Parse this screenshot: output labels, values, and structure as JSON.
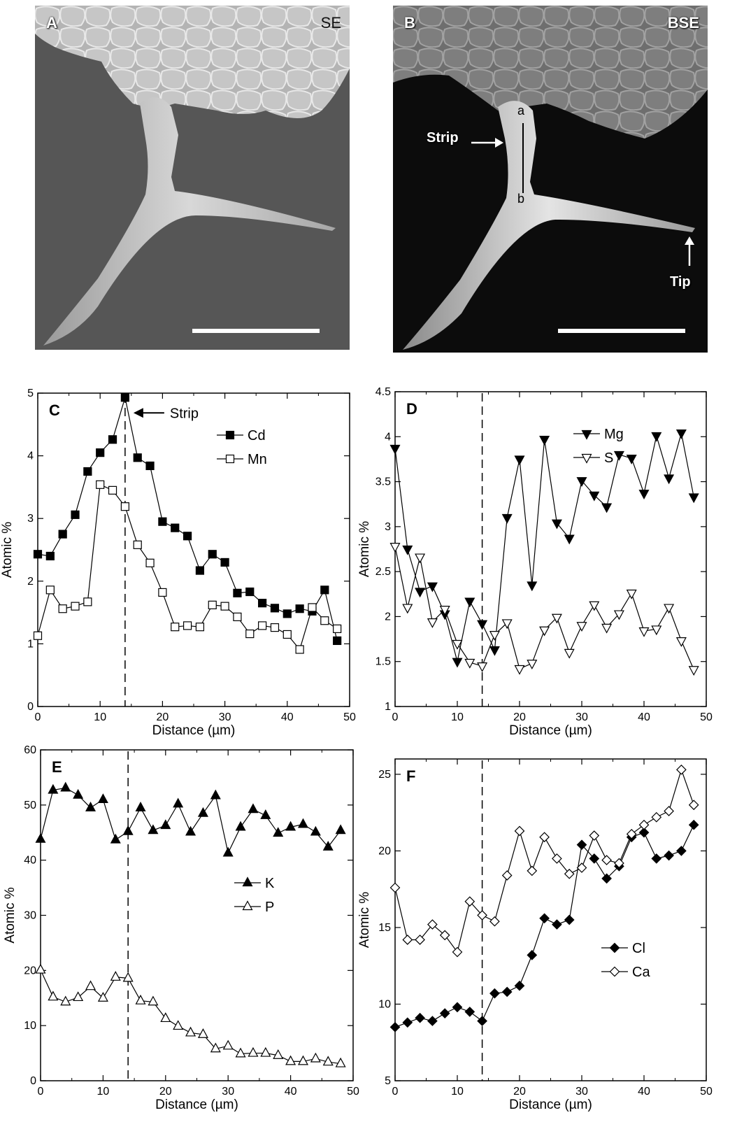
{
  "panelA": {
    "letter": "A",
    "mode": "SE"
  },
  "panelB": {
    "letter": "B",
    "mode": "BSE",
    "line_top": "a",
    "line_bottom": "b",
    "strip_label": "Strip",
    "tip_label": "Tip"
  },
  "charts": [
    {
      "panel_label": "C",
      "title": "",
      "xlabel": "Distance (µm)",
      "ylabel": "Atomic %",
      "xlim": [
        0,
        50
      ],
      "ylim": [
        0,
        5
      ],
      "xticks": [
        0,
        10,
        20,
        30,
        40,
        50
      ],
      "yticks": [
        0,
        1,
        2,
        3,
        4,
        5
      ],
      "ytick_labels": [
        "0",
        "1",
        "2",
        "3",
        "4",
        "5"
      ],
      "dashed_x": 14,
      "annotation": {
        "text": "Strip",
        "x": 14,
        "y": 4.93
      }
    },
    {
      "panel_label": "D",
      "title": "",
      "xlabel": "Distance (µm)",
      "ylabel": "Atomic %",
      "xlim": [
        0,
        50
      ],
      "ylim": [
        1,
        4.5
      ],
      "xticks": [
        0,
        10,
        20,
        30,
        40,
        50
      ],
      "yticks": [
        1,
        1.5,
        2,
        2.5,
        3,
        3.5,
        4,
        4.5
      ],
      "ytick_labels": [
        "1",
        "1.5",
        "2",
        "2.5",
        "3",
        "3.5",
        "4",
        "4.5"
      ],
      "dashed_x": 14
    },
    {
      "panel_label": "E",
      "title": "",
      "xlabel": "Distance (µm)",
      "ylabel": "Atomic %",
      "xlim": [
        0,
        50
      ],
      "ylim": [
        0,
        60
      ],
      "xticks": [
        0,
        10,
        20,
        30,
        40,
        50
      ],
      "yticks": [
        0,
        10,
        20,
        30,
        40,
        50,
        60
      ],
      "ytick_labels": [
        "0",
        "10",
        "20",
        "30",
        "40",
        "50",
        "60"
      ],
      "dashed_x": 14
    },
    {
      "panel_label": "F",
      "title": "",
      "xlabel": "Distance (µm)",
      "ylabel": "Atomic %",
      "xlim": [
        0,
        50
      ],
      "ylim": [
        5,
        26
      ],
      "xticks": [
        0,
        10,
        20,
        30,
        40,
        50
      ],
      "yticks": [
        5,
        10,
        15,
        20,
        25
      ],
      "ytick_labels": [
        "5",
        "10",
        "15",
        "20",
        "25"
      ],
      "dashed_x": 14
    }
  ],
  "chart_data": [
    {
      "type": "line",
      "panel": "C",
      "xlabel": "Distance (µm)",
      "ylabel": "Atomic %",
      "xlim": [
        0,
        50
      ],
      "ylim": [
        0,
        5
      ],
      "legend_position": "upper-right",
      "x": [
        0,
        2,
        4,
        6,
        8,
        10,
        12,
        14,
        16,
        18,
        20,
        22,
        24,
        26,
        28,
        30,
        32,
        34,
        36,
        38,
        40,
        42,
        44,
        46,
        48
      ],
      "series": [
        {
          "name": "Cd",
          "marker": "filled-square",
          "values": [
            2.43,
            2.4,
            2.75,
            3.06,
            3.75,
            4.05,
            4.26,
            4.93,
            3.97,
            3.84,
            2.95,
            2.85,
            2.72,
            2.17,
            2.43,
            2.3,
            1.81,
            1.83,
            1.65,
            1.57,
            1.48,
            1.56,
            1.52,
            1.86,
            1.05
          ]
        },
        {
          "name": "Mn",
          "marker": "open-square",
          "values": [
            1.13,
            1.86,
            1.56,
            1.6,
            1.67,
            3.54,
            3.45,
            3.19,
            2.58,
            2.29,
            1.82,
            1.27,
            1.29,
            1.27,
            1.62,
            1.6,
            1.43,
            1.16,
            1.29,
            1.26,
            1.15,
            0.91,
            1.58,
            1.37,
            1.24
          ]
        }
      ]
    },
    {
      "type": "line",
      "panel": "D",
      "xlabel": "Distance (µm)",
      "ylabel": "Atomic %",
      "xlim": [
        0,
        50
      ],
      "ylim": [
        1,
        4.5
      ],
      "legend_position": "upper-right",
      "x": [
        0,
        2,
        4,
        6,
        8,
        10,
        12,
        14,
        16,
        18,
        20,
        22,
        24,
        26,
        28,
        30,
        32,
        34,
        36,
        38,
        40,
        42,
        44,
        46,
        48
      ],
      "series": [
        {
          "name": "Mg",
          "marker": "filled-triangle-down",
          "values": [
            3.87,
            2.75,
            2.28,
            2.34,
            2.03,
            1.5,
            2.17,
            1.92,
            1.63,
            3.1,
            3.75,
            2.35,
            3.97,
            3.04,
            2.87,
            3.51,
            3.35,
            3.22,
            3.8,
            3.76,
            3.37,
            4.01,
            3.54,
            4.04,
            3.33
          ]
        },
        {
          "name": "S",
          "marker": "open-triangle-down",
          "values": [
            2.78,
            2.1,
            2.66,
            1.94,
            2.08,
            1.7,
            1.49,
            1.45,
            1.8,
            1.93,
            1.42,
            1.48,
            1.85,
            1.99,
            1.6,
            1.9,
            2.13,
            1.88,
            2.03,
            2.26,
            1.84,
            1.86,
            2.1,
            1.73,
            1.41
          ]
        }
      ]
    },
    {
      "type": "line",
      "panel": "E",
      "xlabel": "Distance (µm)",
      "ylabel": "Atomic %",
      "xlim": [
        0,
        50
      ],
      "ylim": [
        0,
        60
      ],
      "legend_position": "center-right",
      "x": [
        0,
        2,
        4,
        6,
        8,
        10,
        12,
        14,
        16,
        18,
        20,
        22,
        24,
        26,
        28,
        30,
        32,
        34,
        36,
        38,
        40,
        42,
        44,
        46,
        48
      ],
      "series": [
        {
          "name": "K",
          "marker": "filled-triangle-up",
          "values": [
            43.8,
            52.7,
            53.1,
            51.8,
            49.5,
            51.0,
            43.7,
            45.2,
            49.5,
            45.4,
            46.3,
            50.2,
            45.1,
            48.5,
            51.7,
            41.3,
            46.0,
            49.2,
            48.1,
            44.9,
            46.0,
            46.5,
            45.1,
            42.4,
            45.4
          ]
        },
        {
          "name": "P",
          "marker": "open-triangle-up",
          "values": [
            20.1,
            15.2,
            14.3,
            15.1,
            17.1,
            15.0,
            18.8,
            18.6,
            14.5,
            14.3,
            11.3,
            9.9,
            8.7,
            8.4,
            5.8,
            6.3,
            4.9,
            5.0,
            5.0,
            4.6,
            3.5,
            3.5,
            4.0,
            3.4,
            3.1
          ]
        }
      ]
    },
    {
      "type": "line",
      "panel": "F",
      "xlabel": "Distance (µm)",
      "ylabel": "Atomic %",
      "xlim": [
        0,
        50
      ],
      "ylim": [
        5,
        26
      ],
      "legend_position": "lower-right",
      "x": [
        0,
        2,
        4,
        6,
        8,
        10,
        12,
        14,
        16,
        18,
        20,
        22,
        24,
        26,
        28,
        30,
        32,
        34,
        36,
        38,
        40,
        42,
        44,
        46,
        48
      ],
      "series": [
        {
          "name": "Cl",
          "marker": "filled-diamond",
          "values": [
            8.5,
            8.8,
            9.1,
            8.9,
            9.4,
            9.8,
            9.5,
            8.9,
            10.7,
            10.8,
            11.2,
            13.2,
            15.6,
            15.2,
            15.5,
            20.4,
            19.5,
            18.2,
            19.0,
            20.9,
            21.2,
            19.5,
            19.7,
            20.0,
            21.7
          ]
        },
        {
          "name": "Ca",
          "marker": "open-diamond",
          "values": [
            17.6,
            14.2,
            14.2,
            15.2,
            14.5,
            13.4,
            16.7,
            15.8,
            15.4,
            18.4,
            21.3,
            18.7,
            20.9,
            19.5,
            18.5,
            18.9,
            21.0,
            19.4,
            19.2,
            21.1,
            21.7,
            22.2,
            22.6,
            25.3,
            23.0
          ]
        }
      ]
    }
  ]
}
